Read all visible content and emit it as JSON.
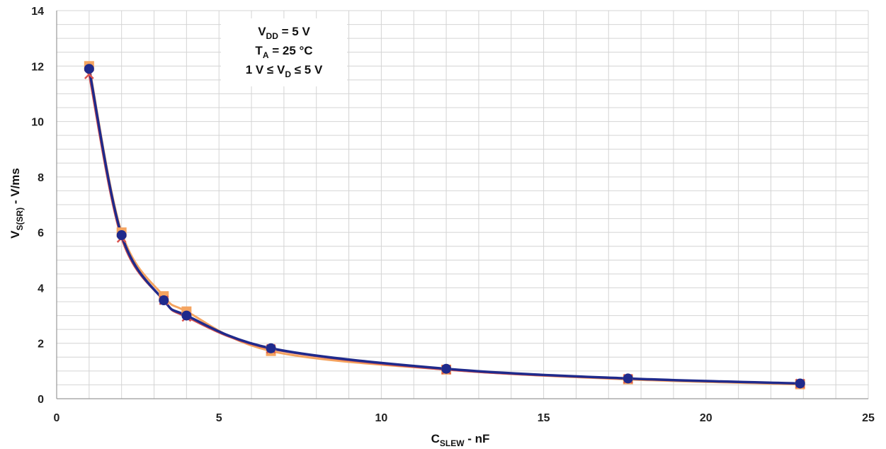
{
  "chart_data": {
    "type": "line",
    "xlabel_main": "C",
    "xlabel_sub": "SLEW",
    "xlabel_rest": " - nF",
    "ylabel_main": "V",
    "ylabel_sub": "S(SR)",
    "ylabel_rest": " - V/ms",
    "xlim": [
      0,
      25
    ],
    "ylim": [
      0,
      14
    ],
    "xticks": [
      0,
      5,
      10,
      15,
      20,
      25
    ],
    "yticks": [
      0,
      2,
      4,
      6,
      8,
      10,
      12,
      14
    ],
    "grid": true,
    "annotations": [
      {
        "main": "V",
        "sub": "DD",
        "rest": " = 5 V"
      },
      {
        "main": "T",
        "sub": "A",
        "rest": " = 25 °C"
      },
      {
        "pre": "1 V ≤ V",
        "sub": "D",
        "rest": " ≤ 5 V"
      }
    ],
    "series": [
      {
        "marker": "square",
        "color": "#f4a460",
        "x": [
          1,
          2,
          3.3,
          4,
          6.6,
          12,
          17.6,
          22.9
        ],
        "y": [
          12.0,
          6.0,
          3.7,
          3.15,
          1.72,
          1.05,
          0.7,
          0.52
        ]
      },
      {
        "marker": "x",
        "color": "#d9534f",
        "x": [
          1,
          2,
          3.3,
          4,
          6.6,
          12,
          17.6,
          22.9
        ],
        "y": [
          11.7,
          5.8,
          3.55,
          2.95,
          1.8,
          1.05,
          0.72,
          0.55
        ]
      },
      {
        "marker": "circle",
        "color": "#1f2a8c",
        "x": [
          1,
          2,
          3.3,
          4,
          6.6,
          12,
          17.6,
          22.9
        ],
        "y": [
          11.9,
          5.9,
          3.55,
          3.0,
          1.82,
          1.08,
          0.73,
          0.55
        ]
      }
    ]
  }
}
